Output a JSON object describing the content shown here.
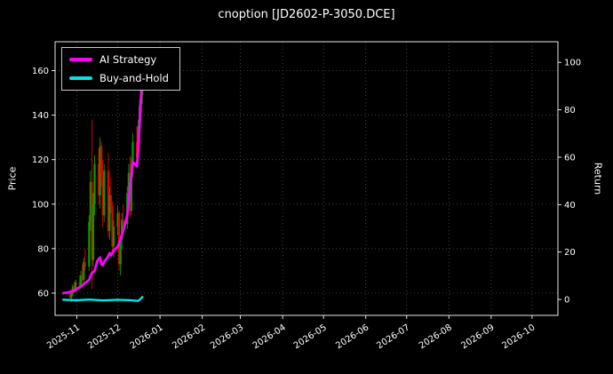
{
  "chart_data": {
    "type": "candlestick+line",
    "title": "cnoption [JD2602-P-3050.DCE]",
    "ylabel_left": "Price",
    "ylabel_right": "Return",
    "grid": "dotted",
    "legend_position": "upper-left",
    "x_domain": [
      "2025-10-16",
      "2026-10-20"
    ],
    "x_ticks": [
      {
        "label": "2025-11",
        "date": "2025-11-01"
      },
      {
        "label": "2025-12",
        "date": "2025-12-01"
      },
      {
        "label": "2026-01",
        "date": "2026-01-01"
      },
      {
        "label": "2026-02",
        "date": "2026-02-01"
      },
      {
        "label": "2026-03",
        "date": "2026-03-01"
      },
      {
        "label": "2026-04",
        "date": "2026-04-01"
      },
      {
        "label": "2026-05",
        "date": "2026-05-01"
      },
      {
        "label": "2026-06",
        "date": "2026-06-01"
      },
      {
        "label": "2026-07",
        "date": "2026-07-01"
      },
      {
        "label": "2026-08",
        "date": "2026-08-01"
      },
      {
        "label": "2026-09",
        "date": "2026-09-01"
      },
      {
        "label": "2026-10",
        "date": "2026-10-01"
      }
    ],
    "left_ticks": [
      60,
      80,
      100,
      120,
      140,
      160
    ],
    "right_ticks": [
      0,
      20,
      40,
      60,
      80,
      100
    ],
    "left_ylim": [
      50,
      173
    ],
    "right_ylim": [
      -6.7,
      108.7
    ],
    "colors": {
      "background": "#000000",
      "text": "#ffffff",
      "grid": "#5a5a5a",
      "spine": "#ffffff",
      "up": "#00a000",
      "down": "#e10000",
      "ai_strategy": "#ff00ff",
      "buy_and_hold": "#00e5e5"
    },
    "candles_dohlc": [
      [
        "2025-10-27",
        60,
        62,
        57,
        58
      ],
      [
        "2025-10-28",
        58,
        61,
        56,
        60
      ],
      [
        "2025-10-29",
        60,
        64,
        59,
        63
      ],
      [
        "2025-10-30",
        63,
        65,
        60,
        61
      ],
      [
        "2025-10-31",
        61,
        66,
        60,
        65
      ],
      [
        "2025-11-03",
        65,
        68,
        62,
        63
      ],
      [
        "2025-11-04",
        63,
        70,
        62,
        68
      ],
      [
        "2025-11-05",
        68,
        73,
        65,
        66
      ],
      [
        "2025-11-06",
        66,
        76,
        64,
        74
      ],
      [
        "2025-11-07",
        74,
        80,
        70,
        72
      ],
      [
        "2025-11-10",
        72,
        95,
        70,
        92
      ],
      [
        "2025-11-11",
        92,
        115,
        88,
        110
      ],
      [
        "2025-11-12",
        110,
        138,
        62,
        75
      ],
      [
        "2025-11-13",
        75,
        105,
        72,
        100
      ],
      [
        "2025-11-14",
        100,
        122,
        95,
        118
      ],
      [
        "2025-11-17",
        118,
        125,
        100,
        104
      ],
      [
        "2025-11-18",
        104,
        130,
        98,
        126
      ],
      [
        "2025-11-19",
        126,
        128,
        108,
        112
      ],
      [
        "2025-11-20",
        112,
        120,
        90,
        95
      ],
      [
        "2025-11-21",
        95,
        118,
        92,
        115
      ],
      [
        "2025-11-24",
        115,
        123,
        85,
        88
      ],
      [
        "2025-11-25",
        88,
        108,
        84,
        104
      ],
      [
        "2025-11-26",
        104,
        112,
        96,
        99
      ],
      [
        "2025-11-27",
        99,
        101,
        78,
        81
      ],
      [
        "2025-11-28",
        81,
        93,
        76,
        90
      ],
      [
        "2025-12-01",
        90,
        99,
        86,
        96
      ],
      [
        "2025-12-02",
        96,
        97,
        70,
        73
      ],
      [
        "2025-12-03",
        73,
        86,
        68,
        84
      ],
      [
        "2025-12-04",
        84,
        96,
        80,
        93
      ],
      [
        "2025-12-05",
        93,
        100,
        88,
        91
      ],
      [
        "2025-12-08",
        91,
        108,
        89,
        105
      ],
      [
        "2025-12-09",
        105,
        118,
        100,
        114
      ],
      [
        "2025-12-10",
        114,
        122,
        94,
        97
      ],
      [
        "2025-12-11",
        97,
        121,
        95,
        118
      ],
      [
        "2025-12-12",
        118,
        132,
        112,
        128
      ],
      [
        "2025-12-15",
        128,
        135,
        118,
        121
      ],
      [
        "2025-12-16",
        121,
        138,
        119,
        135
      ],
      [
        "2025-12-17",
        135,
        147,
        130,
        144
      ],
      [
        "2025-12-18",
        144,
        152,
        138,
        149
      ],
      [
        "2025-12-19",
        149,
        158,
        145,
        155
      ]
    ],
    "series": [
      {
        "name": "AI Strategy",
        "color": "#ff00ff",
        "axis": "left",
        "points": [
          [
            "2025-10-22",
            60
          ],
          [
            "2025-10-27",
            60.5
          ],
          [
            "2025-10-31",
            61.5
          ],
          [
            "2025-11-04",
            63
          ],
          [
            "2025-11-07",
            64.5
          ],
          [
            "2025-11-10",
            66
          ],
          [
            "2025-11-12",
            69
          ],
          [
            "2025-11-14",
            70
          ],
          [
            "2025-11-16",
            74.5
          ],
          [
            "2025-11-18",
            76
          ],
          [
            "2025-11-19",
            73
          ],
          [
            "2025-11-20",
            72.5
          ],
          [
            "2025-11-21",
            74
          ],
          [
            "2025-11-24",
            76.5
          ],
          [
            "2025-11-25",
            78
          ],
          [
            "2025-11-26",
            77
          ],
          [
            "2025-11-28",
            79
          ],
          [
            "2025-12-01",
            81
          ],
          [
            "2025-12-03",
            84
          ],
          [
            "2025-12-05",
            88
          ],
          [
            "2025-12-08",
            95
          ],
          [
            "2025-12-09",
            101
          ],
          [
            "2025-12-10",
            108
          ],
          [
            "2025-12-11",
            113
          ],
          [
            "2025-12-12",
            119
          ],
          [
            "2025-12-15",
            117
          ],
          [
            "2025-12-16",
            124
          ],
          [
            "2025-12-17",
            135
          ],
          [
            "2025-12-18",
            147
          ],
          [
            "2025-12-19",
            162
          ]
        ]
      },
      {
        "name": "Buy-and-Hold",
        "color": "#00e5e5",
        "axis": "left",
        "points": [
          [
            "2025-10-22",
            57
          ],
          [
            "2025-11-01",
            56.8
          ],
          [
            "2025-11-10",
            57.1
          ],
          [
            "2025-11-20",
            56.7
          ],
          [
            "2025-12-01",
            57
          ],
          [
            "2025-12-10",
            56.8
          ],
          [
            "2025-12-16",
            56.5
          ],
          [
            "2025-12-18",
            57.5
          ],
          [
            "2025-12-19",
            58.3
          ]
        ]
      }
    ]
  }
}
